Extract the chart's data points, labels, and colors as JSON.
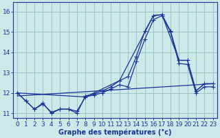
{
  "xlabel": "Graphe des températures (°c)",
  "background_color": "#cce8e8",
  "grid_color": "#9dc4c4",
  "line_color": "#1a3399",
  "xlim": [
    -0.5,
    23.5
  ],
  "ylim": [
    10.75,
    16.45
  ],
  "xticks": [
    0,
    1,
    2,
    3,
    4,
    5,
    6,
    7,
    8,
    9,
    10,
    11,
    12,
    13,
    14,
    15,
    16,
    17,
    18,
    19,
    20,
    21,
    22,
    23
  ],
  "yticks": [
    11,
    12,
    13,
    14,
    15,
    16
  ],
  "line1_x": [
    0,
    1,
    2,
    3,
    4,
    5,
    6,
    7,
    8,
    9,
    10,
    11,
    12,
    13,
    14,
    15,
    16,
    17,
    18,
    19,
    20,
    21,
    22,
    23
  ],
  "line1_y": [
    12.0,
    11.6,
    11.2,
    11.5,
    11.0,
    11.2,
    11.2,
    11.0,
    11.85,
    11.95,
    12.1,
    12.3,
    12.6,
    12.8,
    13.8,
    15.05,
    15.8,
    15.85,
    15.05,
    13.6,
    13.6,
    12.1,
    12.45,
    12.45
  ],
  "line2_x": [
    0,
    1,
    2,
    3,
    4,
    5,
    6,
    7,
    8,
    9,
    10,
    11,
    12,
    13,
    14,
    15,
    16,
    17,
    18,
    19,
    20,
    21,
    22,
    23
  ],
  "line2_y": [
    12.0,
    11.6,
    11.2,
    11.45,
    11.05,
    11.2,
    11.2,
    11.1,
    11.8,
    11.9,
    12.0,
    12.2,
    12.4,
    12.3,
    13.55,
    14.65,
    15.6,
    15.8,
    15.0,
    13.45,
    13.4,
    12.0,
    12.3,
    12.3
  ],
  "line3_x": [
    0,
    23
  ],
  "line3_y": [
    11.85,
    12.45
  ],
  "line4_x": [
    0,
    8,
    12,
    16,
    17,
    19,
    20,
    21,
    22,
    23
  ],
  "line4_y": [
    12.0,
    11.8,
    12.6,
    15.8,
    15.85,
    13.6,
    13.6,
    12.1,
    12.45,
    12.45
  ]
}
